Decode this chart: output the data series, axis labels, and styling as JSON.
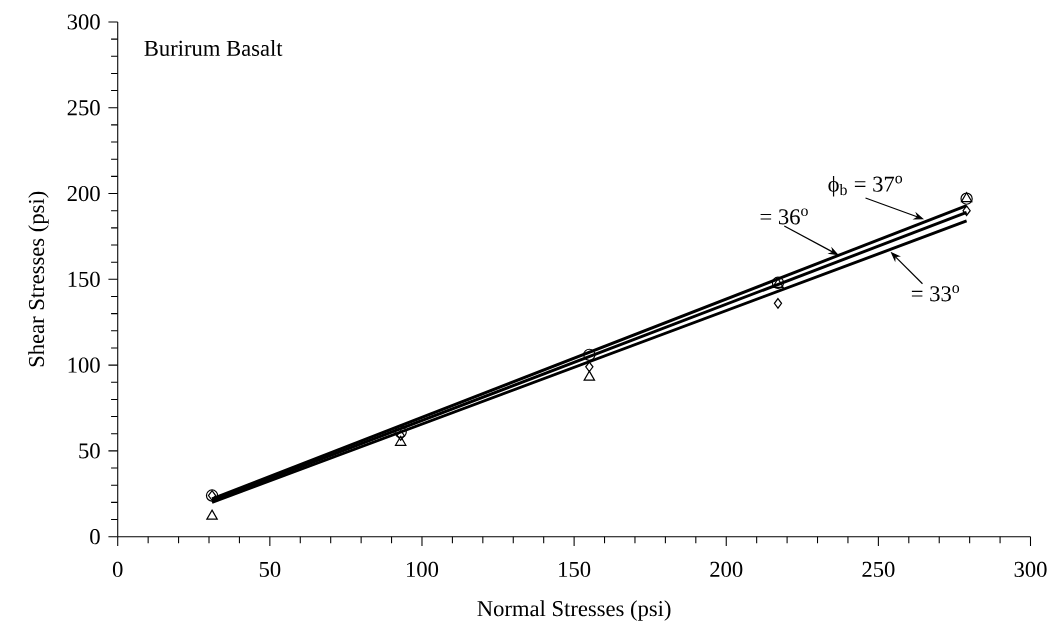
{
  "chart_data": {
    "type": "scatter",
    "xlabel": "Normal Stresses (psi)",
    "ylabel": "Shear Stresses (psi)",
    "xlim": [
      0,
      300
    ],
    "ylim": [
      0,
      300
    ],
    "xticks": [
      0,
      50,
      100,
      150,
      200,
      250,
      300
    ],
    "yticks": [
      0,
      50,
      100,
      150,
      200,
      250,
      300
    ],
    "grid": false,
    "series": [
      {
        "marker": "circle",
        "color": "#000000",
        "x": [
          31,
          93,
          155,
          217,
          279
        ],
        "values": [
          24,
          61,
          106,
          148,
          197
        ]
      },
      {
        "marker": "diamond",
        "color": "#000000",
        "x": [
          31,
          93,
          155,
          217,
          279
        ],
        "values": [
          24,
          59,
          99,
          136,
          190
        ]
      },
      {
        "marker": "triangle",
        "color": "#000000",
        "x": [
          31,
          93,
          155,
          217,
          279
        ],
        "values": [
          12,
          55,
          93,
          147,
          197
        ]
      },
      {
        "type": "line",
        "marker": "none",
        "color": "#000000",
        "x": [
          31,
          279
        ],
        "values": [
          22,
          193
        ]
      },
      {
        "type": "line",
        "marker": "none",
        "color": "#000000",
        "x": [
          31,
          279
        ],
        "values": [
          21,
          189
        ]
      },
      {
        "type": "line",
        "marker": "none",
        "color": "#000000",
        "x": [
          31,
          279
        ],
        "values": [
          20,
          184
        ]
      }
    ],
    "annotations": [
      "Burirum Basalt",
      {
        "text": "ϕ$_{b}$ = 37$^{o}$",
        "x": 265,
        "y": 185
      },
      {
        "text": "= 36$^{o}$",
        "x": 237,
        "y": 164
      },
      {
        "text": "= 33$^{o}$",
        "x": 254,
        "y": 166
      }
    ]
  }
}
